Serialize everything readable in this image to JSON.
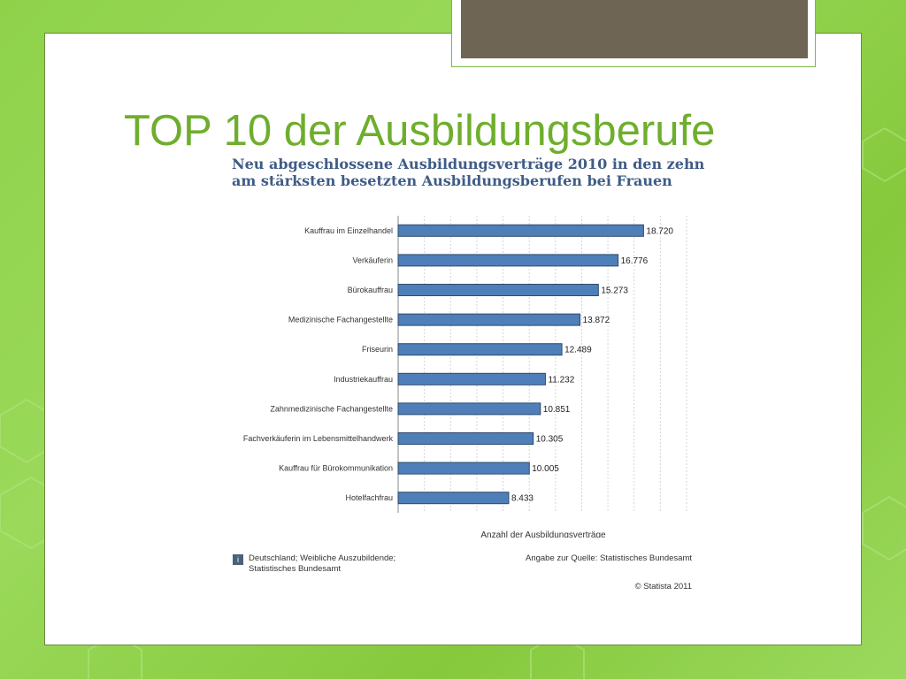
{
  "slide": {
    "title": "TOP 10 der Ausbildungsberufe",
    "colors": {
      "background": "#8fd24a",
      "title": "#6fae2d",
      "accent_box": "#6f6555"
    }
  },
  "chart_data": {
    "type": "bar",
    "orientation": "horizontal",
    "title": "Neu abgeschlossene Ausbildungsverträge 2010 in den zehn am stärksten besetzten Ausbildungsberufen bei Frauen",
    "categories": [
      "Kauffrau im Einzelhandel",
      "Verkäuferin",
      "Bürokauffrau",
      "Medizinische Fachangestellte",
      "Friseurin",
      "Industriekauffrau",
      "Zahnmedizinische Fachangestellte",
      "Fachverkäuferin im Lebensmittelhandwerk",
      "Kauffrau für Bürokommunikation",
      "Hotelfachfrau"
    ],
    "values": [
      18720,
      16776,
      15273,
      13872,
      12489,
      11232,
      10851,
      10305,
      10005,
      8433
    ],
    "value_labels": [
      "18.720",
      "16.776",
      "15.273",
      "13.872",
      "12.489",
      "11.232",
      "10.851",
      "10.305",
      "10.005",
      "8.433"
    ],
    "xlabel": "Anzahl der Ausbildungsverträge",
    "ylabel": "",
    "xlim": [
      0,
      22000
    ],
    "grid": true,
    "bar_color": "#4f7fb8",
    "footnote_left": "Deutschland; Weibliche Auszubildende; Statistisches Bundesamt",
    "footnote_right": "Angabe zur Quelle: Statistisches Bundesamt",
    "info_icon_label": "i",
    "copyright": "© Statista 2011"
  }
}
